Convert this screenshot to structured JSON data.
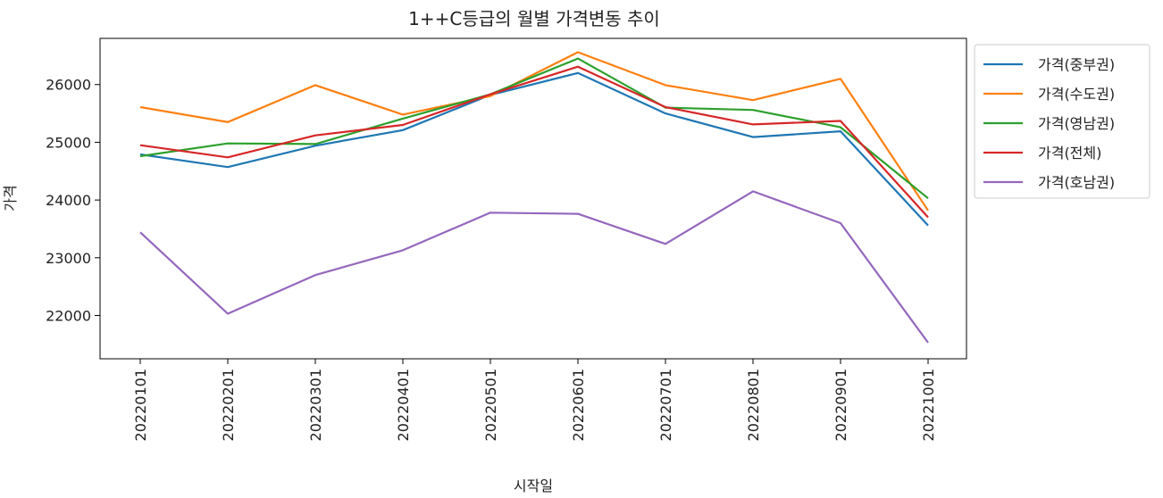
{
  "chart_data": {
    "type": "line",
    "title": "1++C등급의 월별 가격변동 추이",
    "xlabel": "시작일",
    "ylabel": "가격",
    "categories": [
      "20220101",
      "20220201",
      "20220301",
      "20220401",
      "20220501",
      "20220601",
      "20220701",
      "20220801",
      "20220901",
      "20221001"
    ],
    "yticks": [
      22000,
      23000,
      24000,
      25000,
      26000
    ],
    "ylim": [
      21250,
      26800
    ],
    "grid": false,
    "legend_position": "outside-right",
    "series": [
      {
        "name": "가격(중부권)",
        "color": "#1f77b4",
        "values": [
          24790,
          24570,
          24940,
          25210,
          25820,
          26200,
          25500,
          25090,
          25190,
          23560
        ]
      },
      {
        "name": "가격(수도권)",
        "color": "#ff7f0e",
        "values": [
          25610,
          25350,
          25990,
          25480,
          25800,
          26560,
          25990,
          25730,
          26100,
          23820
        ]
      },
      {
        "name": "가격(영남권)",
        "color": "#2ca02c",
        "values": [
          24760,
          24980,
          24970,
          25410,
          25830,
          26450,
          25600,
          25560,
          25260,
          24030
        ]
      },
      {
        "name": "가격(전체)",
        "color": "#d62728",
        "values": [
          24950,
          24740,
          25120,
          25300,
          25830,
          26310,
          25610,
          25310,
          25370,
          23700
        ]
      },
      {
        "name": "가격(호남권)",
        "color": "#9467bd",
        "values": [
          23440,
          22030,
          22700,
          23130,
          23780,
          23760,
          23240,
          24150,
          23600,
          21530
        ]
      }
    ]
  }
}
